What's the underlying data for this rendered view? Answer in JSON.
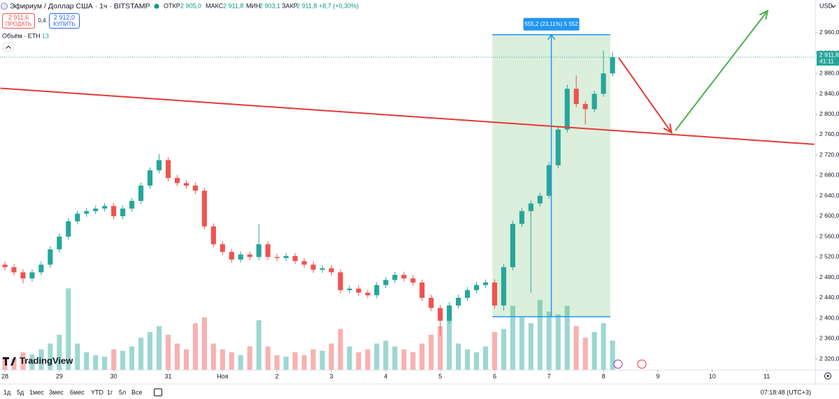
{
  "header": {
    "symbol": "Эфириум / Доллар США · 1ч · BITSTAMP",
    "open_label": "ОТКР",
    "open": "2 905,0",
    "high_label": "МАКС",
    "high": "2 911,8",
    "low_label": "МИН",
    "low": "2 903,1",
    "close_label": "ЗАКР",
    "close": "2 911,8",
    "change": "+8,7 (+0,30%)",
    "sell_price": "2 911,6",
    "sell_label": "ПРОДАТЬ",
    "spread": "0,4",
    "buy_price": "2 912,0",
    "buy_label": "КУПИТЬ",
    "volume_label": "Объём · ETH",
    "volume_value": "13",
    "currency": "USD",
    "logo": "TradingView"
  },
  "toolbar": {
    "ranges": [
      "1д",
      "5д",
      "1мес",
      "3мес",
      "6мес",
      "YTD",
      "1г",
      "5л",
      "Все"
    ],
    "time": "07:18:48 (UTC+3)"
  },
  "chart_data": {
    "type": "candlestick",
    "x": [
      0,
      4,
      8,
      12,
      16,
      20,
      24,
      28,
      32,
      36,
      40,
      44,
      48,
      52,
      56,
      60,
      64,
      68,
      72,
      76,
      80,
      84,
      88,
      92,
      96,
      100,
      104,
      108,
      112,
      116,
      120,
      124,
      128,
      132,
      136,
      140,
      144,
      148,
      152,
      156,
      160,
      164,
      168,
      172,
      176,
      180,
      184,
      188,
      192,
      196,
      200,
      204,
      208,
      212,
      216,
      220,
      224,
      228,
      232,
      236,
      240,
      244,
      248,
      252,
      256,
      260,
      264,
      268
    ],
    "open": [
      2505,
      2500,
      2490,
      2478,
      2490,
      2505,
      2535,
      2560,
      2590,
      2605,
      2610,
      2615,
      2620,
      2600,
      2615,
      2630,
      2660,
      2690,
      2710,
      2675,
      2665,
      2660,
      2650,
      2580,
      2545,
      2530,
      2515,
      2525,
      2520,
      2545,
      2520,
      2518,
      2522,
      2512,
      2505,
      2495,
      2498,
      2490,
      2455,
      2458,
      2450,
      2445,
      2465,
      2475,
      2485,
      2478,
      2470,
      2440,
      2420,
      2395,
      2425,
      2440,
      2455,
      2465,
      2470,
      2425,
      2500,
      2585,
      2610,
      2625,
      2640,
      2700,
      2770,
      2850,
      2820,
      2810,
      2840,
      2880
    ],
    "high": [
      2511,
      2506,
      2496,
      2496,
      2511,
      2541,
      2566,
      2596,
      2611,
      2616,
      2621,
      2626,
      2626,
      2621,
      2636,
      2666,
      2696,
      2722,
      2716,
      2681,
      2671,
      2666,
      2656,
      2586,
      2551,
      2536,
      2531,
      2531,
      2585,
      2551,
      2526,
      2528,
      2528,
      2518,
      2511,
      2504,
      2504,
      2496,
      2464,
      2464,
      2456,
      2471,
      2481,
      2491,
      2491,
      2484,
      2476,
      2446,
      2426,
      2431,
      2446,
      2461,
      2471,
      2476,
      2476,
      2506,
      2591,
      2616,
      2631,
      2646,
      2706,
      2776,
      2858,
      2876,
      2826,
      2846,
      2925,
      2922
    ],
    "low": [
      2494,
      2484,
      2468,
      2472,
      2484,
      2499,
      2529,
      2554,
      2584,
      2599,
      2604,
      2609,
      2594,
      2594,
      2609,
      2624,
      2654,
      2684,
      2669,
      2659,
      2654,
      2644,
      2574,
      2539,
      2524,
      2509,
      2509,
      2514,
      2514,
      2514,
      2512,
      2512,
      2506,
      2499,
      2489,
      2489,
      2484,
      2449,
      2449,
      2444,
      2439,
      2439,
      2459,
      2469,
      2472,
      2464,
      2434,
      2414,
      2365,
      2389,
      2419,
      2434,
      2449,
      2459,
      2419,
      2415,
      2494,
      2579,
      2450,
      2619,
      2634,
      2694,
      2764,
      2814,
      2780,
      2804,
      2834,
      2874
    ],
    "close": [
      2500,
      2490,
      2478,
      2490,
      2505,
      2535,
      2560,
      2590,
      2605,
      2610,
      2615,
      2620,
      2600,
      2615,
      2630,
      2660,
      2690,
      2710,
      2675,
      2665,
      2660,
      2650,
      2580,
      2545,
      2530,
      2515,
      2525,
      2520,
      2545,
      2520,
      2518,
      2522,
      2512,
      2505,
      2495,
      2498,
      2490,
      2455,
      2458,
      2450,
      2445,
      2465,
      2475,
      2485,
      2478,
      2470,
      2440,
      2420,
      2395,
      2425,
      2440,
      2455,
      2465,
      2470,
      2425,
      2500,
      2585,
      2610,
      2625,
      2640,
      2700,
      2770,
      2850,
      2820,
      2810,
      2840,
      2880,
      2912
    ],
    "volume": [
      420,
      380,
      600,
      520,
      700,
      900,
      1200,
      2800,
      900,
      600,
      500,
      450,
      700,
      650,
      800,
      1100,
      1300,
      1500,
      1200,
      900,
      700,
      1600,
      1800,
      900,
      700,
      600,
      500,
      800,
      1700,
      800,
      500,
      450,
      600,
      500,
      700,
      650,
      900,
      1400,
      800,
      600,
      700,
      900,
      1000,
      800,
      700,
      600,
      900,
      1200,
      1500,
      1800,
      900,
      700,
      600,
      800,
      1300,
      1400,
      2200,
      1800,
      1600,
      2400,
      2000,
      1900,
      2200,
      1500,
      1100,
      1300,
      1600,
      1000
    ],
    "vlim": [
      0,
      3600
    ],
    "up_color": "#26a69a",
    "down_color": "#ef5350",
    "xlim": [
      -2.16,
      357.4
    ],
    "xticks": [
      {
        "value": 0,
        "label": "28"
      },
      {
        "value": 24,
        "label": "29"
      },
      {
        "value": 48,
        "label": "30"
      },
      {
        "value": 72,
        "label": "31"
      },
      {
        "value": 96,
        "label": "Ноя"
      },
      {
        "value": 120,
        "label": "2"
      },
      {
        "value": 144,
        "label": "3"
      },
      {
        "value": 168,
        "label": "4"
      },
      {
        "value": 192,
        "label": "5"
      },
      {
        "value": 216,
        "label": "6"
      },
      {
        "value": 240,
        "label": "7"
      },
      {
        "value": 264,
        "label": "8"
      },
      {
        "value": 288,
        "label": "9"
      },
      {
        "value": 312,
        "label": "10"
      },
      {
        "value": 336,
        "label": "11"
      }
    ],
    "ylim": [
      2299,
      3024
    ],
    "yticks": [
      {
        "value": 2320,
        "label": "2 320,0"
      },
      {
        "value": 2360,
        "label": "2 360,0"
      },
      {
        "value": 2400,
        "label": "2 400,0"
      },
      {
        "value": 2440,
        "label": "2 440,0"
      },
      {
        "value": 2480,
        "label": "2 480,0"
      },
      {
        "value": 2520,
        "label": "2 520,0"
      },
      {
        "value": 2560,
        "label": "2 560,0"
      },
      {
        "value": 2600,
        "label": "2 600,0"
      },
      {
        "value": 2640,
        "label": "2 640,0"
      },
      {
        "value": 2680,
        "label": "2 680,0"
      },
      {
        "value": 2720,
        "label": "2 720,0"
      },
      {
        "value": 2760,
        "label": "2 760,0"
      },
      {
        "value": 2800,
        "label": "2 800,0"
      },
      {
        "value": 2840,
        "label": "2 840,0"
      },
      {
        "value": 2880,
        "label": "2 880,0"
      },
      {
        "value": 2920,
        "label": "2 920,0"
      },
      {
        "value": 2960,
        "label": "2 960,0"
      }
    ],
    "grid": false,
    "last_price": {
      "value": 2911.8,
      "label": "2 911,8",
      "countdown": "41:11",
      "color": "#26a69a"
    },
    "trendline": {
      "x": [
        -2,
        357
      ],
      "y": [
        2851,
        2741
      ],
      "color": "#e53935"
    },
    "arrows": [
      {
        "x": [
          270.7,
          294
        ],
        "y": [
          2911,
          2764
        ],
        "color": "#e53935"
      },
      {
        "x": [
          295.7,
          336.4
        ],
        "y": [
          2768,
          3003
        ],
        "color": "#4caf50"
      }
    ],
    "measure": {
      "x": [
        215,
        267
      ],
      "y": [
        2403,
        2956
      ],
      "label": "555,2 (23,11%) 5 552",
      "color": "#2196f3"
    }
  }
}
